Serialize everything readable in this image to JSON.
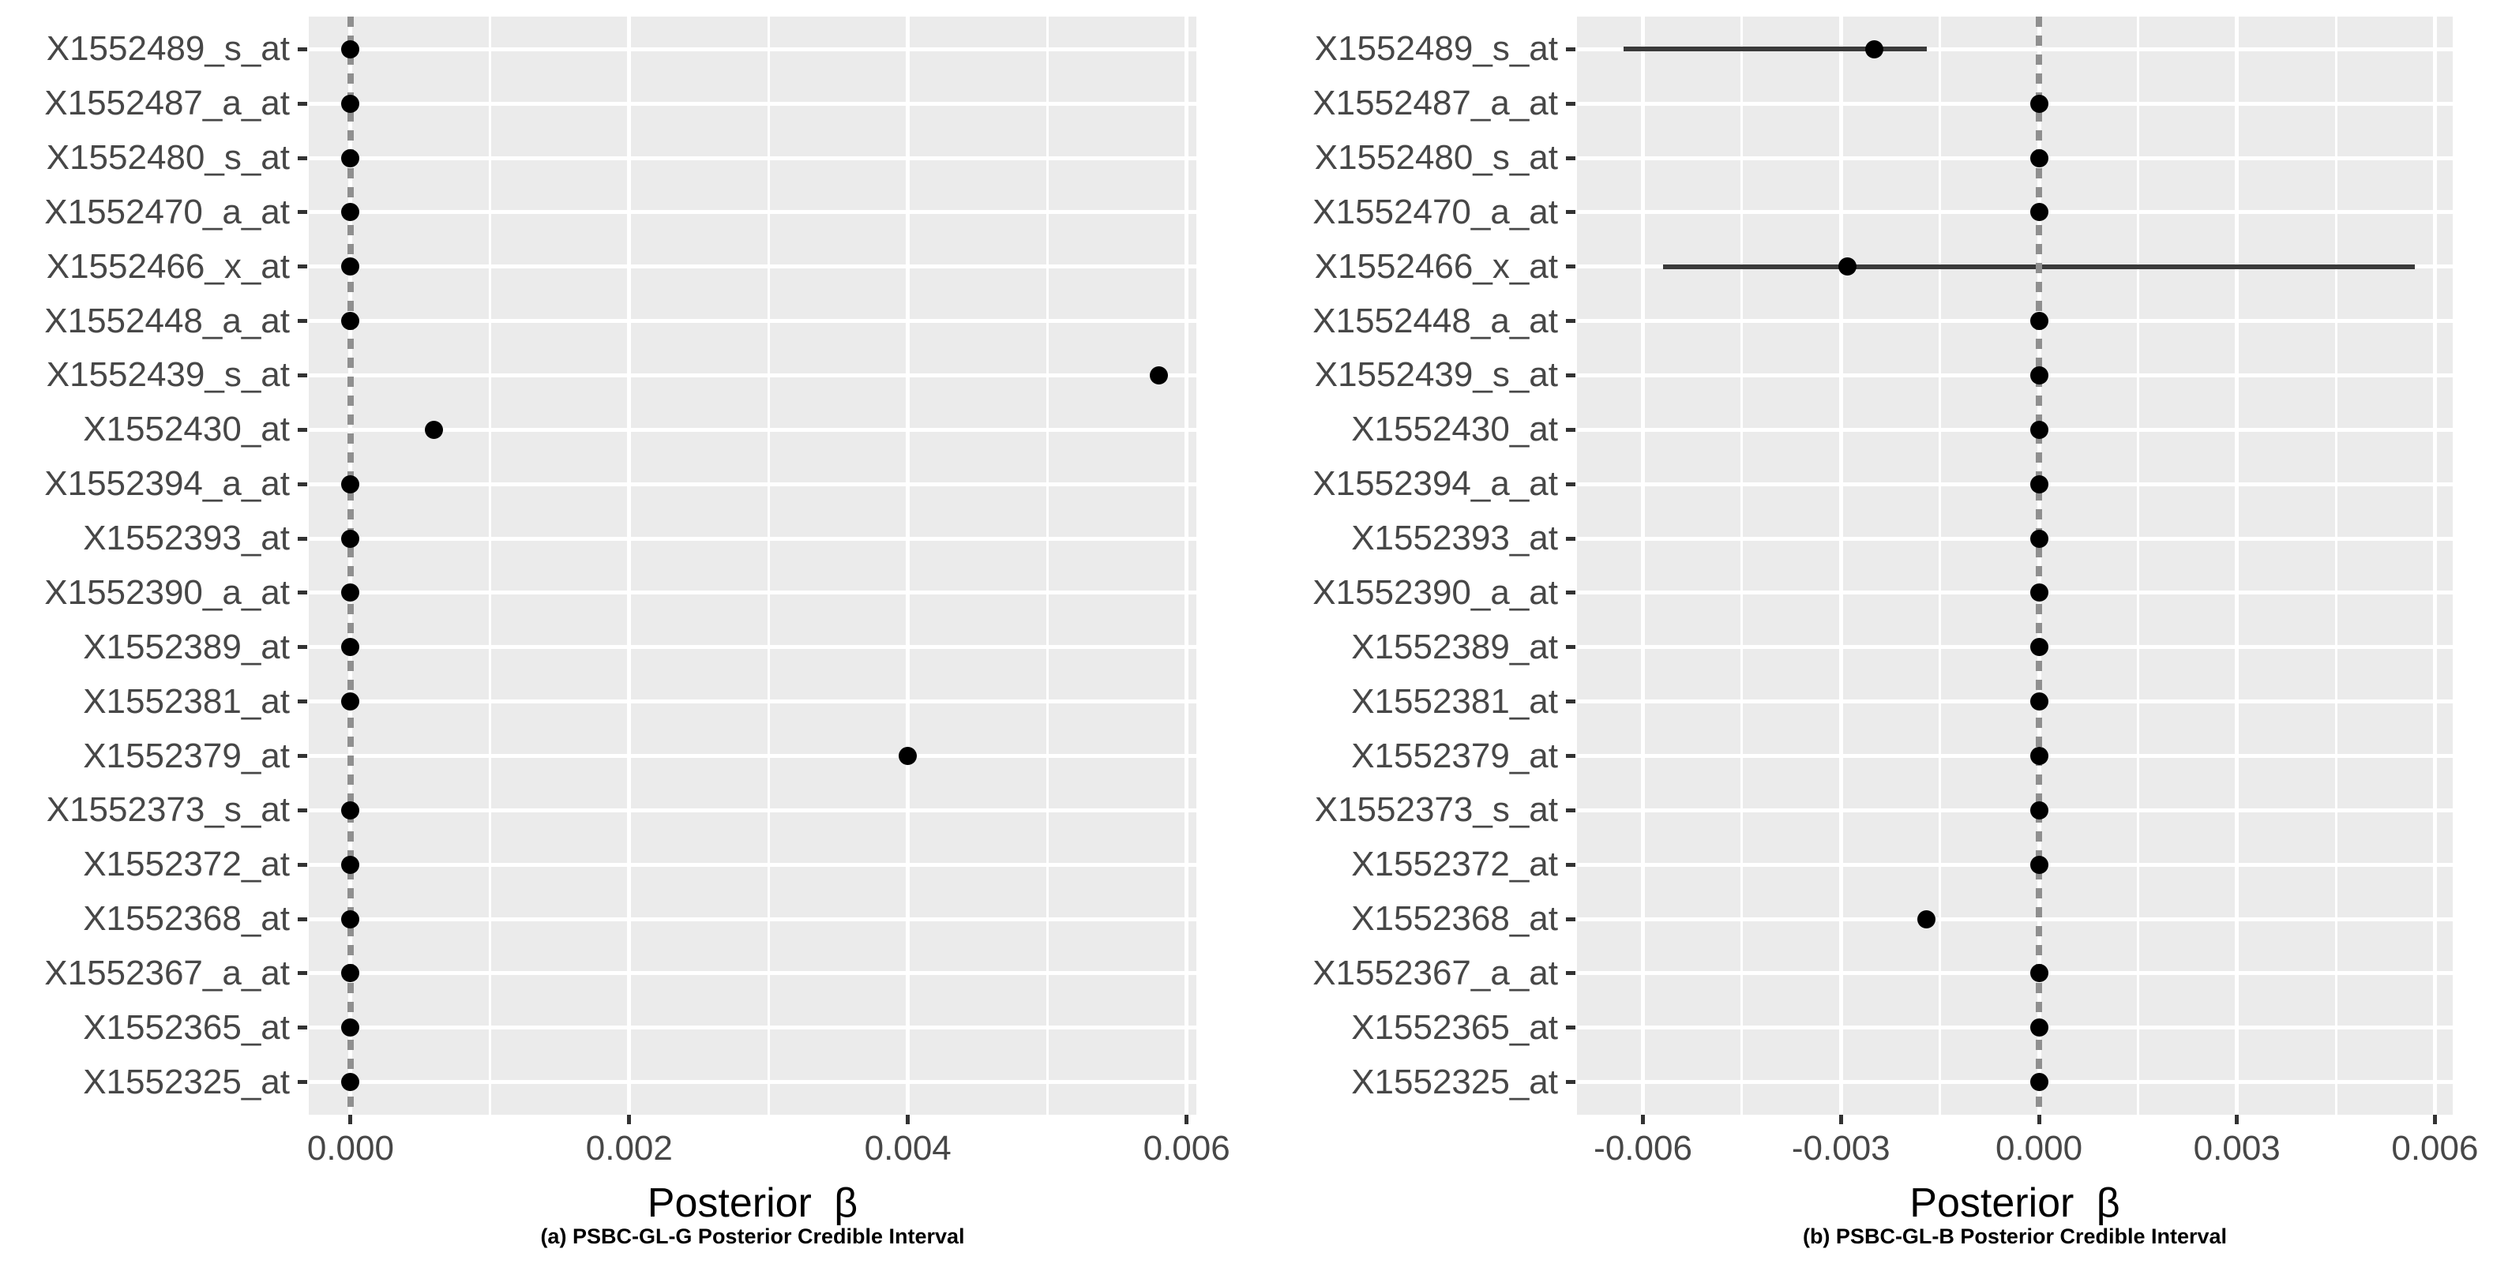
{
  "page": {
    "background": "#ffffff",
    "description_colors": {
      "panel_background": "#ebebeb",
      "gridline": "#ffffff",
      "zero_reference_line": "#8f8f8f",
      "posterior_mean_point": "#000000",
      "credible_interval_bar": "#3a3a3a",
      "axis_tick": "#333333",
      "axis_text": "#474747"
    }
  },
  "chart_data": [
    {
      "type": "scatter",
      "variant": "dot-interval-forest-horizontal",
      "title": "",
      "xlabel": "Posterior β",
      "ylabel": "",
      "caption": "(a) PSBC-GL-G Posterior Credible Interval",
      "legend": "none",
      "grid": "on",
      "xlim": [
        -0.0003,
        0.00607
      ],
      "zero_line_x": 0,
      "x_ticks": [
        {
          "value": 0,
          "label": "0.000"
        },
        {
          "value": 0.002,
          "label": "0.002"
        },
        {
          "value": 0.004,
          "label": "0.004"
        },
        {
          "value": 0.006,
          "label": "0.006"
        }
      ],
      "x_minor_ticks": [
        0.001,
        0.003,
        0.005
      ],
      "categories": [
        "X1552489_s_at",
        "X1552487_a_at",
        "X1552480_s_at",
        "X1552470_a_at",
        "X1552466_x_at",
        "X1552448_a_at",
        "X1552439_s_at",
        "X1552430_at",
        "X1552394_a_at",
        "X1552393_at",
        "X1552390_a_at",
        "X1552389_at",
        "X1552381_at",
        "X1552379_at",
        "X1552373_s_at",
        "X1552372_at",
        "X1552368_at",
        "X1552367_a_at",
        "X1552365_at",
        "X1552325_at"
      ],
      "points": [
        {
          "label": "X1552489_s_at",
          "est": 0,
          "lo": null,
          "hi": null
        },
        {
          "label": "X1552487_a_at",
          "est": 0,
          "lo": null,
          "hi": null
        },
        {
          "label": "X1552480_s_at",
          "est": 0,
          "lo": null,
          "hi": null
        },
        {
          "label": "X1552470_a_at",
          "est": 0,
          "lo": null,
          "hi": null
        },
        {
          "label": "X1552466_x_at",
          "est": 0,
          "lo": null,
          "hi": null
        },
        {
          "label": "X1552448_a_at",
          "est": 0,
          "lo": null,
          "hi": null
        },
        {
          "label": "X1552439_s_at",
          "est": 0.0058,
          "lo": null,
          "hi": null
        },
        {
          "label": "X1552430_at",
          "est": 0.0006,
          "lo": null,
          "hi": null
        },
        {
          "label": "X1552394_a_at",
          "est": 0,
          "lo": null,
          "hi": null
        },
        {
          "label": "X1552393_at",
          "est": 0,
          "lo": null,
          "hi": null
        },
        {
          "label": "X1552390_a_at",
          "est": 0,
          "lo": null,
          "hi": null
        },
        {
          "label": "X1552389_at",
          "est": 0,
          "lo": null,
          "hi": null
        },
        {
          "label": "X1552381_at",
          "est": 0,
          "lo": null,
          "hi": null
        },
        {
          "label": "X1552379_at",
          "est": 0.004,
          "lo": null,
          "hi": null
        },
        {
          "label": "X1552373_s_at",
          "est": 0,
          "lo": null,
          "hi": null
        },
        {
          "label": "X1552372_at",
          "est": 0,
          "lo": null,
          "hi": null
        },
        {
          "label": "X1552368_at",
          "est": 0,
          "lo": null,
          "hi": null
        },
        {
          "label": "X1552367_a_at",
          "est": 0,
          "lo": null,
          "hi": null
        },
        {
          "label": "X1552365_at",
          "est": 0,
          "lo": null,
          "hi": null
        },
        {
          "label": "X1552325_at",
          "est": 0,
          "lo": null,
          "hi": null
        }
      ]
    },
    {
      "type": "scatter",
      "variant": "dot-interval-forest-horizontal",
      "title": "",
      "xlabel": "Posterior β",
      "ylabel": "",
      "caption": "(b) PSBC-GL-B Posterior Credible Interval",
      "legend": "none",
      "grid": "on",
      "xlim": [
        -0.007,
        0.00627
      ],
      "zero_line_x": 0,
      "x_ticks": [
        {
          "value": -0.006,
          "label": "-0.006"
        },
        {
          "value": -0.003,
          "label": "-0.003"
        },
        {
          "value": 0,
          "label": "0.000"
        },
        {
          "value": 0.003,
          "label": "0.003"
        },
        {
          "value": 0.006,
          "label": "0.006"
        }
      ],
      "x_minor_ticks": [
        -0.0045,
        -0.0015,
        0.0015,
        0.0045
      ],
      "categories": [
        "X1552489_s_at",
        "X1552487_a_at",
        "X1552480_s_at",
        "X1552470_a_at",
        "X1552466_x_at",
        "X1552448_a_at",
        "X1552439_s_at",
        "X1552430_at",
        "X1552394_a_at",
        "X1552393_at",
        "X1552390_a_at",
        "X1552389_at",
        "X1552381_at",
        "X1552379_at",
        "X1552373_s_at",
        "X1552372_at",
        "X1552368_at",
        "X1552367_a_at",
        "X1552365_at",
        "X1552325_at"
      ],
      "points": [
        {
          "label": "X1552489_s_at",
          "est": -0.0025,
          "lo": -0.0063,
          "hi": -0.0017
        },
        {
          "label": "X1552487_a_at",
          "est": 0,
          "lo": null,
          "hi": null
        },
        {
          "label": "X1552480_s_at",
          "est": 0,
          "lo": null,
          "hi": null
        },
        {
          "label": "X1552470_a_at",
          "est": 0,
          "lo": null,
          "hi": null
        },
        {
          "label": "X1552466_x_at",
          "est": -0.0029,
          "lo": -0.0057,
          "hi": 0.0057
        },
        {
          "label": "X1552448_a_at",
          "est": 0,
          "lo": null,
          "hi": null
        },
        {
          "label": "X1552439_s_at",
          "est": 0,
          "lo": null,
          "hi": null
        },
        {
          "label": "X1552430_at",
          "est": 0,
          "lo": null,
          "hi": null
        },
        {
          "label": "X1552394_a_at",
          "est": 0,
          "lo": null,
          "hi": null
        },
        {
          "label": "X1552393_at",
          "est": 0,
          "lo": null,
          "hi": null
        },
        {
          "label": "X1552390_a_at",
          "est": 0,
          "lo": null,
          "hi": null
        },
        {
          "label": "X1552389_at",
          "est": 0,
          "lo": null,
          "hi": null
        },
        {
          "label": "X1552381_at",
          "est": 0,
          "lo": null,
          "hi": null
        },
        {
          "label": "X1552379_at",
          "est": 0,
          "lo": null,
          "hi": null
        },
        {
          "label": "X1552373_s_at",
          "est": 0,
          "lo": null,
          "hi": null
        },
        {
          "label": "X1552372_at",
          "est": 0,
          "lo": null,
          "hi": null
        },
        {
          "label": "X1552368_at",
          "est": -0.0017,
          "lo": null,
          "hi": null
        },
        {
          "label": "X1552367_a_at",
          "est": 0,
          "lo": null,
          "hi": null
        },
        {
          "label": "X1552365_at",
          "est": 0,
          "lo": null,
          "hi": null
        },
        {
          "label": "X1552325_at",
          "est": 0,
          "lo": null,
          "hi": null
        }
      ]
    }
  ]
}
